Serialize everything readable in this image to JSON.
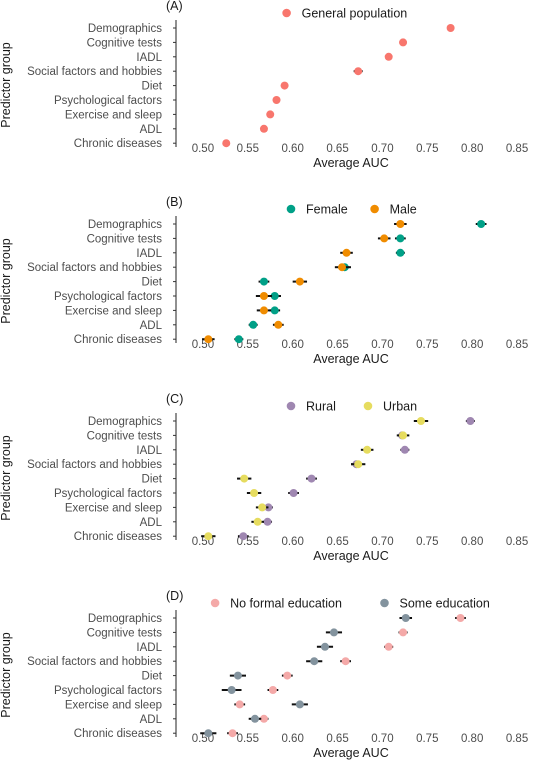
{
  "chart_data": [
    {
      "type": "scatter",
      "panel_label": "(A)",
      "ylabel": "Predictor group",
      "xlabel": "Average AUC",
      "xlim": [
        0.47,
        0.86
      ],
      "x_ticks": [
        "0.50",
        "0.55",
        "0.60",
        "0.65",
        "0.70",
        "0.75",
        "0.80",
        "0.85"
      ],
      "categories": [
        "Demographics",
        "Cognitive tests",
        "IADL",
        "Social factors and hobbies",
        "Diet",
        "Psychological factors",
        "Exercise and sleep",
        "ADL",
        "Chronic diseases"
      ],
      "legend_position": "top",
      "grid": false,
      "error_bars": true,
      "series": [
        {
          "name": "General population",
          "color": "#F8766D",
          "values": [
            0.776,
            0.723,
            0.707,
            0.673,
            0.591,
            0.582,
            0.575,
            0.568,
            0.526
          ],
          "ci_half": [
            0.004,
            0.004,
            0.004,
            0.005,
            0.004,
            0.004,
            0.004,
            0.003,
            0.004
          ]
        }
      ]
    },
    {
      "type": "scatter",
      "panel_label": "(B)",
      "ylabel": "Predictor group",
      "xlabel": "Average AUC",
      "xlim": [
        0.47,
        0.86
      ],
      "x_ticks": [
        "0.50",
        "0.55",
        "0.60",
        "0.65",
        "0.70",
        "0.75",
        "0.80",
        "0.85"
      ],
      "categories": [
        "Demographics",
        "Cognitive tests",
        "IADL",
        "Social factors and hobbies",
        "Diet",
        "Psychological factors",
        "Exercise and sleep",
        "ADL",
        "Chronic diseases"
      ],
      "legend_position": "top",
      "grid": false,
      "error_bars": true,
      "series": [
        {
          "name": "Female",
          "color": "#00A087",
          "values": [
            0.81,
            0.72,
            0.72,
            0.658,
            0.568,
            0.58,
            0.58,
            0.556,
            0.54
          ],
          "ci_half": [
            0.006,
            0.006,
            0.005,
            0.007,
            0.006,
            0.007,
            0.006,
            0.005,
            0.005
          ]
        },
        {
          "name": "Male",
          "color": "#F08C00",
          "values": [
            0.72,
            0.702,
            0.66,
            0.655,
            0.608,
            0.568,
            0.568,
            0.584,
            0.506
          ],
          "ci_half": [
            0.007,
            0.007,
            0.007,
            0.008,
            0.008,
            0.009,
            0.008,
            0.006,
            0.007
          ]
        }
      ]
    },
    {
      "type": "scatter",
      "panel_label": "(C)",
      "ylabel": "Predictor group",
      "xlabel": "Average AUC",
      "xlim": [
        0.47,
        0.86
      ],
      "x_ticks": [
        "0.50",
        "0.55",
        "0.60",
        "0.65",
        "0.70",
        "0.75",
        "0.80",
        "0.85"
      ],
      "categories": [
        "Demographics",
        "Cognitive tests",
        "IADL",
        "Social factors and hobbies",
        "Diet",
        "Psychological factors",
        "Exercise and sleep",
        "ADL",
        "Chronic diseases"
      ],
      "legend_position": "top",
      "grid": false,
      "error_bars": true,
      "series": [
        {
          "name": "Rural",
          "color": "#9F87B1",
          "values": [
            0.798,
            0.722,
            0.725,
            0.671,
            0.621,
            0.601,
            0.573,
            0.572,
            0.545
          ],
          "ci_half": [
            0.005,
            0.005,
            0.005,
            0.006,
            0.006,
            0.006,
            0.005,
            0.005,
            0.006
          ]
        },
        {
          "name": "Urban",
          "color": "#E6DC5F",
          "values": [
            0.743,
            0.723,
            0.683,
            0.673,
            0.546,
            0.557,
            0.566,
            0.561,
            0.506
          ],
          "ci_half": [
            0.008,
            0.007,
            0.007,
            0.008,
            0.008,
            0.008,
            0.007,
            0.007,
            0.008
          ]
        }
      ]
    },
    {
      "type": "scatter",
      "panel_label": "(D)",
      "ylabel": "Predictor group",
      "xlabel": "Average AUC",
      "xlim": [
        0.47,
        0.86
      ],
      "x_ticks": [
        "0.50",
        "0.55",
        "0.60",
        "0.65",
        "0.70",
        "0.75",
        "0.80",
        "0.85"
      ],
      "categories": [
        "Demographics",
        "Cognitive tests",
        "IADL",
        "Social factors and hobbies",
        "Diet",
        "Psychological factors",
        "Exercise and sleep",
        "ADL",
        "Chronic diseases"
      ],
      "legend_position": "top",
      "grid": false,
      "error_bars": true,
      "series": [
        {
          "name": "No formal education",
          "color": "#F4A9A8",
          "values": [
            0.787,
            0.723,
            0.707,
            0.659,
            0.594,
            0.578,
            0.541,
            0.568,
            0.533
          ],
          "ci_half": [
            0.006,
            0.005,
            0.005,
            0.006,
            0.006,
            0.006,
            0.006,
            0.005,
            0.006
          ]
        },
        {
          "name": "Some education",
          "color": "#83939E",
          "values": [
            0.726,
            0.646,
            0.636,
            0.624,
            0.539,
            0.532,
            0.608,
            0.558,
            0.506
          ],
          "ci_half": [
            0.007,
            0.009,
            0.009,
            0.009,
            0.009,
            0.011,
            0.009,
            0.007,
            0.009
          ]
        }
      ]
    }
  ]
}
